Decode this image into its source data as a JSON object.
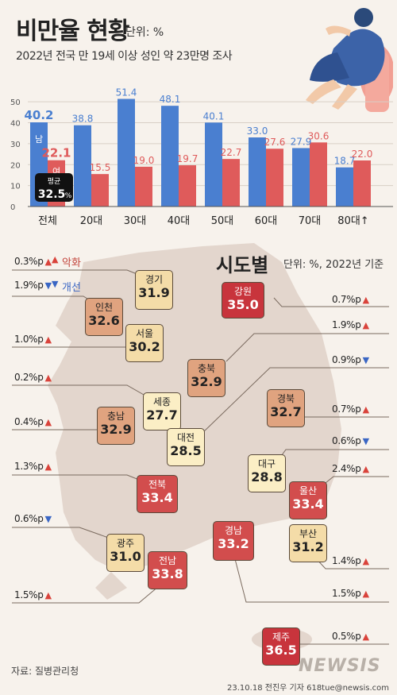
{
  "header": {
    "title": "비만율 현황",
    "unit": "단위: %",
    "subtitle": "2022년 전국 만 19세 이상 성인 약 23만명 조사"
  },
  "colors": {
    "male": "#4a7fd0",
    "female": "#df5b5b",
    "avg_box": "#111111"
  },
  "chart_data": {
    "type": "bar",
    "categories": [
      "전체",
      "20대",
      "30대",
      "40대",
      "50대",
      "60대",
      "70대",
      "80대↑"
    ],
    "series": [
      {
        "name": "남",
        "values": [
          40.2,
          38.8,
          51.4,
          48.1,
          40.1,
          33.0,
          27.9,
          18.7
        ]
      },
      {
        "name": "여",
        "values": [
          22.1,
          15.5,
          19.0,
          19.7,
          22.7,
          27.6,
          30.6,
          22.0
        ]
      }
    ],
    "yticks": [
      "0",
      "10",
      "20",
      "30",
      "40",
      "50"
    ],
    "ylim": [
      0,
      55
    ],
    "average_label": "평균",
    "average_value": "32.5",
    "average_unit": "%"
  },
  "regional": {
    "title": "시도별",
    "unit": "단위: %, 2022년 기준",
    "legend_up": "악화",
    "legend_down": "개선",
    "regions": [
      {
        "name": "경기",
        "value": "31.9",
        "change": "0.3%p",
        "dir": "up"
      },
      {
        "name": "인천",
        "value": "32.6",
        "change": "1.9%p",
        "dir": "down"
      },
      {
        "name": "서울",
        "value": "30.2",
        "change": "1.0%p",
        "dir": "up"
      },
      {
        "name": "강원",
        "value": "35.0",
        "change": "0.7%p",
        "dir": "up"
      },
      {
        "name": "충북",
        "value": "32.9",
        "change": "1.9%p",
        "dir": "up"
      },
      {
        "name": "세종",
        "value": "27.7",
        "change": "0.2%p",
        "dir": "up"
      },
      {
        "name": "충남",
        "value": "32.9",
        "change": "0.4%p",
        "dir": "up"
      },
      {
        "name": "대전",
        "value": "28.5",
        "change": "0.9%p",
        "dir": "down"
      },
      {
        "name": "경북",
        "value": "32.7",
        "change": "0.7%p",
        "dir": "up"
      },
      {
        "name": "대구",
        "value": "28.8",
        "change": "0.6%p",
        "dir": "down"
      },
      {
        "name": "전북",
        "value": "33.4",
        "change": "1.3%p",
        "dir": "up"
      },
      {
        "name": "울산",
        "value": "33.4",
        "change": "2.4%p",
        "dir": "up"
      },
      {
        "name": "광주",
        "value": "31.0",
        "change": "0.6%p",
        "dir": "down"
      },
      {
        "name": "전남",
        "value": "33.8",
        "change": "1.5%p",
        "dir": "up"
      },
      {
        "name": "경남",
        "value": "33.2",
        "change": "1.5%p",
        "dir": "up"
      },
      {
        "name": "부산",
        "value": "31.2",
        "change": "1.4%p",
        "dir": "up"
      },
      {
        "name": "제주",
        "value": "36.5",
        "change": "0.5%p",
        "dir": "up"
      }
    ]
  },
  "footer": {
    "source": "자료: 질병관리청",
    "credit": "23.10.18 전진우 기자 618tue@newsis.com",
    "logo": "NEWSIS"
  }
}
